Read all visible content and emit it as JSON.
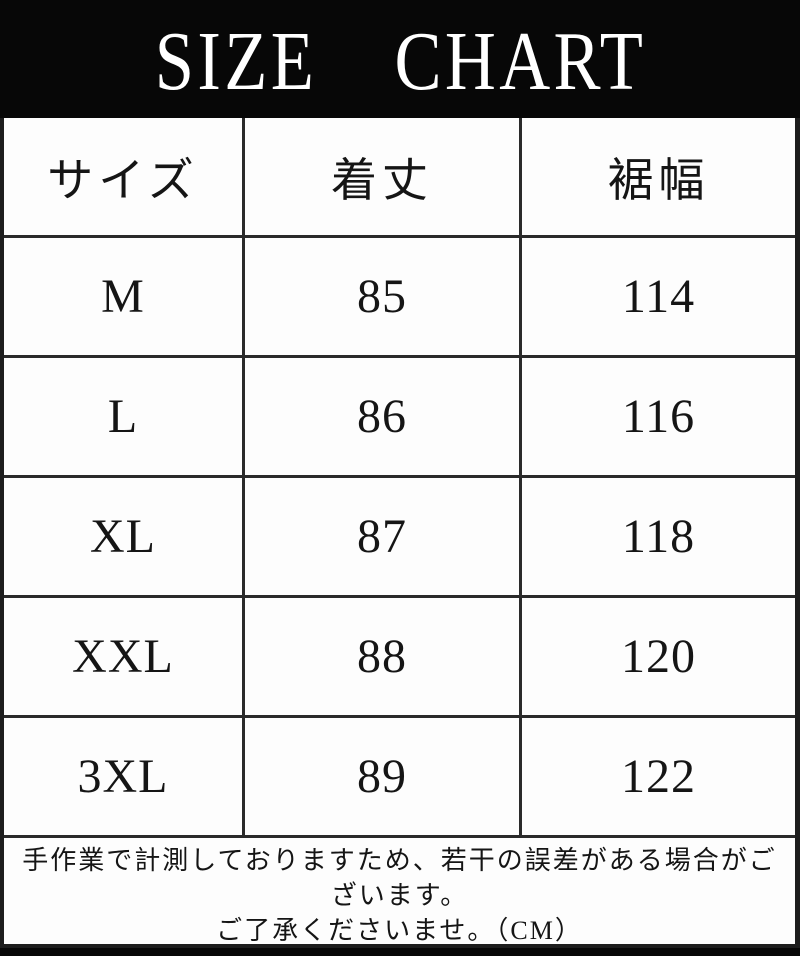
{
  "colors": {
    "banner_bg": "#070707",
    "banner_text": "#ffffff",
    "border": "#2a2a2a",
    "cell_bg": "#fdfdfd",
    "text": "#151515"
  },
  "title": {
    "word1": "SIZE",
    "word2": "CHART"
  },
  "table": {
    "headers": {
      "size": "サイズ",
      "length": "着丈",
      "hem": "裾幅"
    },
    "rows": [
      {
        "size": "M",
        "length": "85",
        "hem": "114"
      },
      {
        "size": "L",
        "length": "86",
        "hem": "116"
      },
      {
        "size": "XL",
        "length": "87",
        "hem": "118"
      },
      {
        "size": "XXL",
        "length": "88",
        "hem": "120"
      },
      {
        "size": "3XL",
        "length": "89",
        "hem": "122"
      }
    ]
  },
  "footer": {
    "lines": [
      "手作業で計測しておりますため、若干の誤差がある場合がご",
      "ざいます。",
      "ご了承くださいませ。（CM）"
    ]
  },
  "chart_data": {
    "type": "table",
    "title": "SIZE CHART",
    "columns": [
      "サイズ",
      "着丈",
      "裾幅"
    ],
    "rows": [
      [
        "M",
        85,
        114
      ],
      [
        "L",
        86,
        116
      ],
      [
        "XL",
        87,
        118
      ],
      [
        "XXL",
        88,
        120
      ],
      [
        "3XL",
        89,
        122
      ]
    ],
    "unit": "CM",
    "note": "手作業で計測しておりますため、若干の誤差がある場合がございます。ご了承くださいませ。（CM）"
  }
}
